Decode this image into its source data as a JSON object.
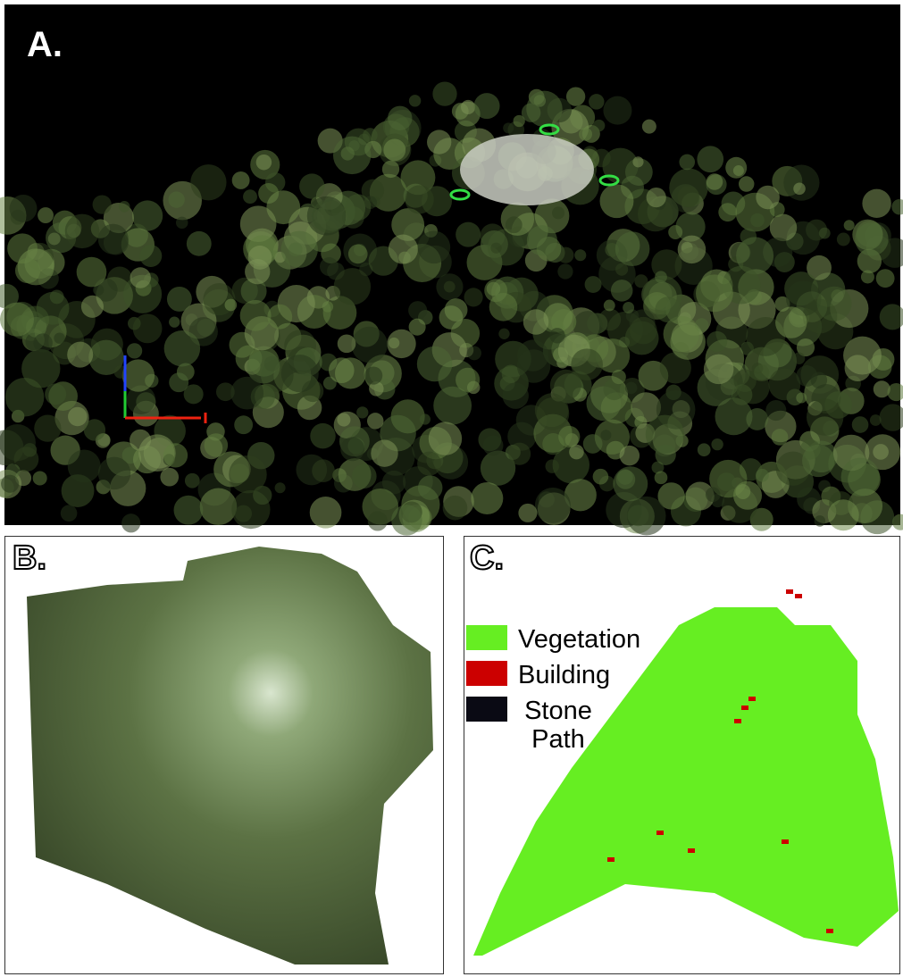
{
  "panels": {
    "a": {
      "label": "A."
    },
    "b": {
      "label": "B."
    },
    "c": {
      "label": "C.",
      "legend": [
        {
          "name": "Vegetation",
          "color": "#66ee22"
        },
        {
          "name": "Building",
          "color": "#cc0000"
        },
        {
          "name": "Stone Path",
          "color": "#0a0a14"
        }
      ]
    }
  }
}
